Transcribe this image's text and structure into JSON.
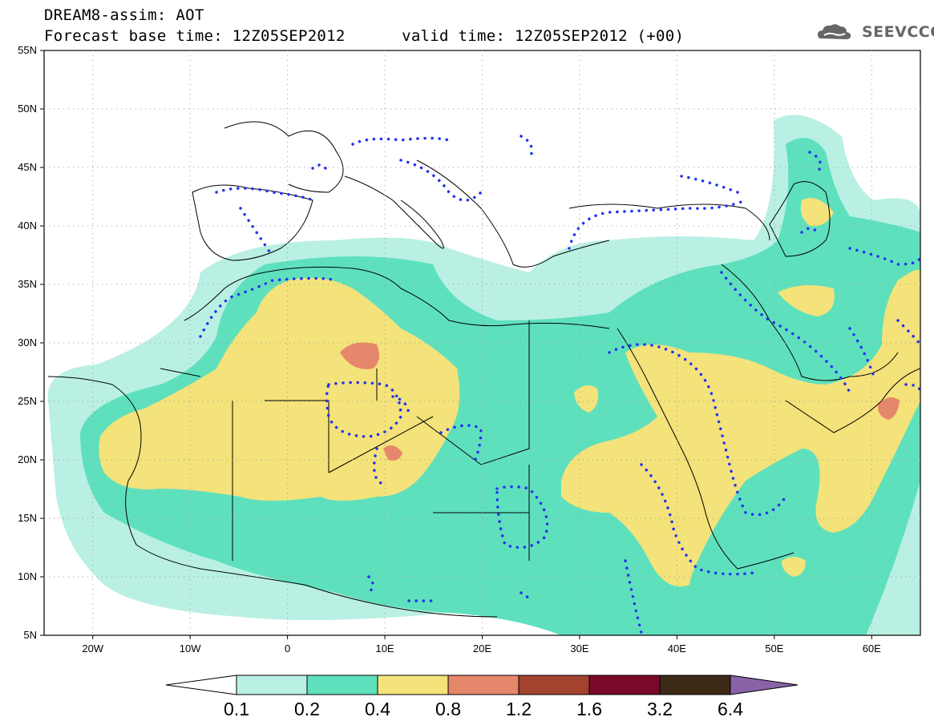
{
  "header": {
    "title_line1": "DREAM8-assim: AOT",
    "title_line2": "Forecast base time: 12Z05SEP2012      valid time: 12Z05SEP2012 (+00)"
  },
  "logo": {
    "text": "SEEVCCC",
    "icon": "cloud-icon"
  },
  "map": {
    "projection": "lat-lon",
    "lon_range": [
      -25,
      65
    ],
    "lat_range": [
      5,
      55
    ],
    "lat_labels": [
      "55N",
      "50N",
      "45N",
      "40N",
      "35N",
      "30N",
      "25N",
      "20N",
      "15N",
      "10N",
      "5N"
    ],
    "lon_labels": [
      "20W",
      "10W",
      "0",
      "10E",
      "20E",
      "30E",
      "40E",
      "50E",
      "60E"
    ],
    "overlay_contour_color": "#2233ee",
    "coastline_color": "#000000"
  },
  "colorbar": {
    "labels": [
      "0.1",
      "0.2",
      "0.4",
      "0.8",
      "1.2",
      "1.6",
      "3.2",
      "6.4"
    ],
    "colors": [
      "#ffffff",
      "#b9f0e3",
      "#5fe0bd",
      "#f4e27a",
      "#e5876a",
      "#a2422f",
      "#7a0a2a",
      "#3d2a16",
      "#8a62a8"
    ]
  }
}
